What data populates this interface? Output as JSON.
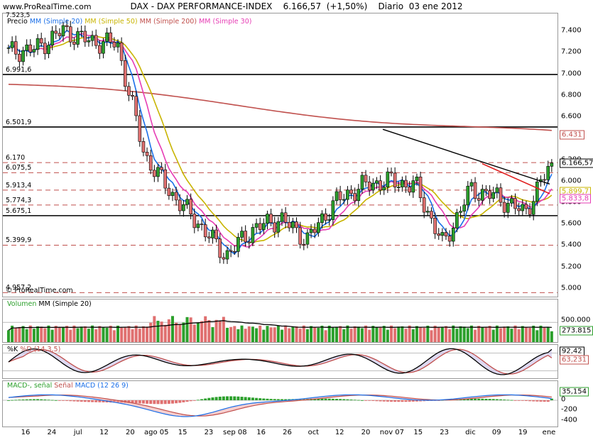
{
  "header": {
    "site": "www.ProRealTime.com",
    "title": "DAX - DAX PERFORMANCE-INDEX",
    "last": "6.166,57",
    "change": "(+1,50%)",
    "period": "Diario",
    "date": "03 ene 2012"
  },
  "watermark": "© ProRealTime.com",
  "price_panel": {
    "legend": [
      {
        "text": "Precio",
        "color": "#000000"
      },
      {
        "text": "MM (Simple 20)",
        "color": "#1a6fe8"
      },
      {
        "text": "MM (Simple 50)",
        "color": "#c8b400"
      },
      {
        "text": "MM (Simple 200)",
        "color": "#c0504d"
      },
      {
        "text": "MM (Simple 30)",
        "color": "#e63cb4"
      }
    ],
    "top_label": "7.523,5",
    "axis_ticks": [
      "7.400",
      "7.200",
      "7.000",
      "6.800",
      "6.600",
      "6.400",
      "6.200",
      "6.000",
      "5.800",
      "5.600",
      "5.400",
      "5.200",
      "5.000"
    ],
    "levels": [
      {
        "label": "6.991,6",
        "value": 6991.6,
        "style": "solid"
      },
      {
        "label": "6.501,9",
        "value": 6501.9,
        "style": "solid"
      },
      {
        "label": "6.170",
        "value": 6170,
        "style": "dashed"
      },
      {
        "label": "6.075,5",
        "value": 6075.5,
        "style": "dashed"
      },
      {
        "label": "5.913,4",
        "value": 5913.4,
        "style": "dashed"
      },
      {
        "label": "5.774,3",
        "value": 5774.3,
        "style": "dashed"
      },
      {
        "label": "5.675,1",
        "value": 5675.1,
        "style": "solid"
      },
      {
        "label": "5.399,9",
        "value": 5399.9,
        "style": "dashed"
      },
      {
        "label": "4.957,2",
        "value": 4957.2,
        "style": "dashed"
      }
    ],
    "tags": [
      {
        "text": "6.431",
        "value": 6431,
        "color": "#c0504d"
      },
      {
        "text": "6.166,57",
        "value": 6166.57,
        "color": "#000000"
      },
      {
        "text": "5.899,7",
        "value": 5899.7,
        "color": "#c8b400"
      },
      {
        "text": "5.833,8",
        "value": 5833.8,
        "color": "#e63cb4"
      }
    ]
  },
  "volume_panel": {
    "legend": [
      {
        "text": "Volumen",
        "color": "#2ca02c"
      },
      {
        "text": "MM (Simple 20)",
        "color": "#000000"
      }
    ],
    "axis_ticks": [
      "500.000"
    ],
    "tag": "273.815"
  },
  "stoch_panel": {
    "legend": [
      {
        "text": "%K",
        "color": "#000000"
      },
      {
        "text": "%D (14,3,5)",
        "color": "#c0504d"
      }
    ],
    "tags": [
      "92,42",
      "63,231"
    ]
  },
  "macd_panel": {
    "legend": [
      {
        "text": "MACD-, señal",
        "color": "#2ca02c"
      },
      {
        "text": "Señal",
        "color": "#c0504d"
      },
      {
        "text": "MACD (12 26 9)",
        "color": "#1a6fe8"
      }
    ],
    "axis_ticks": [
      "0",
      "-200",
      "-400"
    ],
    "tag": "35,154"
  },
  "x_axis": {
    "labels": [
      "16",
      "24",
      "jul",
      "12",
      "20",
      "ago 05",
      "15",
      "23",
      "sep 08",
      "16",
      "26",
      "oct",
      "12",
      "20",
      "nov 07",
      "15",
      "23",
      "dic",
      "09",
      "19",
      "ene"
    ]
  },
  "chart_data": {
    "type": "candlestick",
    "title": "DAX - DAX PERFORMANCE-INDEX",
    "series": [
      {
        "name": "Precio",
        "type": "candlestick",
        "x": [
          "2011-06-16",
          "2011-06-24",
          "2011-07-04",
          "2011-07-12",
          "2011-07-20",
          "2011-08-05",
          "2011-08-15",
          "2011-08-23",
          "2011-09-08",
          "2011-09-16",
          "2011-09-26",
          "2011-10-04",
          "2011-10-12",
          "2011-10-20",
          "2011-11-07",
          "2011-11-15",
          "2011-11-23",
          "2011-12-01",
          "2011-12-09",
          "2011-12-19",
          "2012-01-03"
        ],
        "close": [
          7200,
          7230,
          7400,
          7300,
          7280,
          6240,
          5880,
          5600,
          5300,
          5550,
          5650,
          5450,
          5800,
          5950,
          6000,
          5950,
          5400,
          5920,
          5850,
          5700,
          6166.57
        ]
      },
      {
        "name": "MM (Simple 20)",
        "last": 5800
      },
      {
        "name": "MM (Simple 50)",
        "last": 5899.7
      },
      {
        "name": "MM (Simple 200)",
        "last": 6431
      },
      {
        "name": "MM (Simple 30)",
        "last": 5833.8
      }
    ],
    "ylim": [
      4920,
      7560
    ],
    "volume_last": 273815,
    "stochastic_last": {
      "K": 92.42,
      "D": 63.231
    },
    "macd_last": 35.154
  }
}
